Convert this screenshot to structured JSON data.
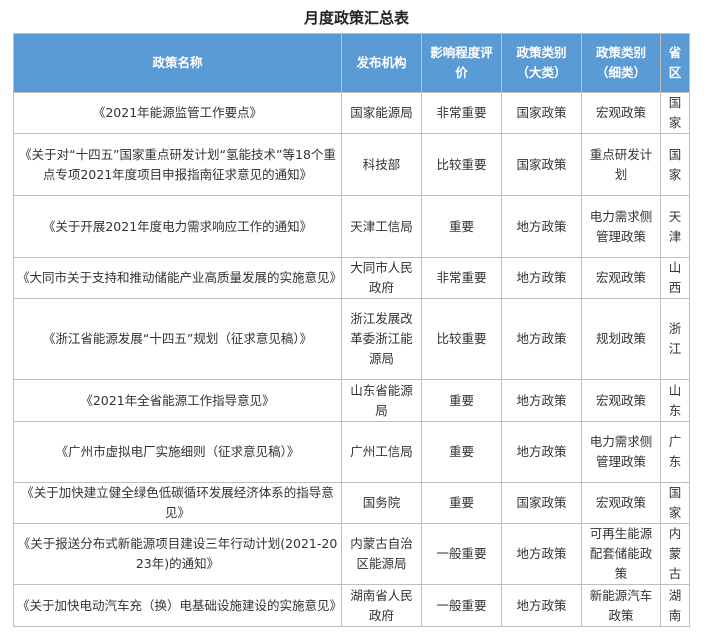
{
  "header": {
    "title": "月度政策汇总表"
  },
  "table": {
    "columns": [
      "政策名称",
      "发布机构",
      "影响程度评价",
      "政策类别（大类）",
      "政策类别（细类）",
      "省区"
    ],
    "rows": [
      [
        "《2021年能源监管工作要点》",
        "国家能源局",
        "非常重要",
        "国家政策",
        "宏观政策",
        "国家"
      ],
      [
        "《关于对“十四五”国家重点研发计划“氢能技术”等18个重点专项2021年度项目申报指南征求意见的通知》",
        "科技部",
        "比较重要",
        "国家政策",
        "重点研发计划",
        "国家"
      ],
      [
        "《关于开展2021年度电力需求响应工作的通知》",
        "天津工信局",
        "重要",
        "地方政策",
        "电力需求侧管理政策",
        "天津"
      ],
      [
        "《大同市关于支持和推动储能产业高质量发展的实施意见》",
        "大同市人民政府",
        "非常重要",
        "地方政策",
        "宏观政策",
        "山西"
      ],
      [
        "《浙江省能源发展“十四五”规划（征求意见稿）》",
        "浙江发展改革委浙江能源局",
        "比较重要",
        "地方政策",
        "规划政策",
        "浙江"
      ],
      [
        "《2021年全省能源工作指导意见》",
        "山东省能源局",
        "重要",
        "地方政策",
        "宏观政策",
        "山东"
      ],
      [
        "《广州市虚拟电厂实施细则（征求意见稿）》",
        "广州工信局",
        "重要",
        "地方政策",
        "电力需求侧管理政策",
        "广东"
      ],
      [
        "《关于加快建立健全绿色低碳循环发展经济体系的指导意见》",
        "国务院",
        "重要",
        "国家政策",
        "宏观政策",
        "国家"
      ],
      [
        "《关于报送分布式新能源项目建设三年行动计划(2021-2023年)的通知》",
        "内蒙古自治区能源局",
        "一般重要",
        "地方政策",
        "可再生能源配套储能政策",
        "内蒙古"
      ],
      [
        "《关于加快电动汽车充（换）电基础设施建设的实施意见》",
        "湖南省人民政府",
        "一般重要",
        "地方政策",
        "新能源汽车政策",
        "湖南"
      ]
    ]
  }
}
